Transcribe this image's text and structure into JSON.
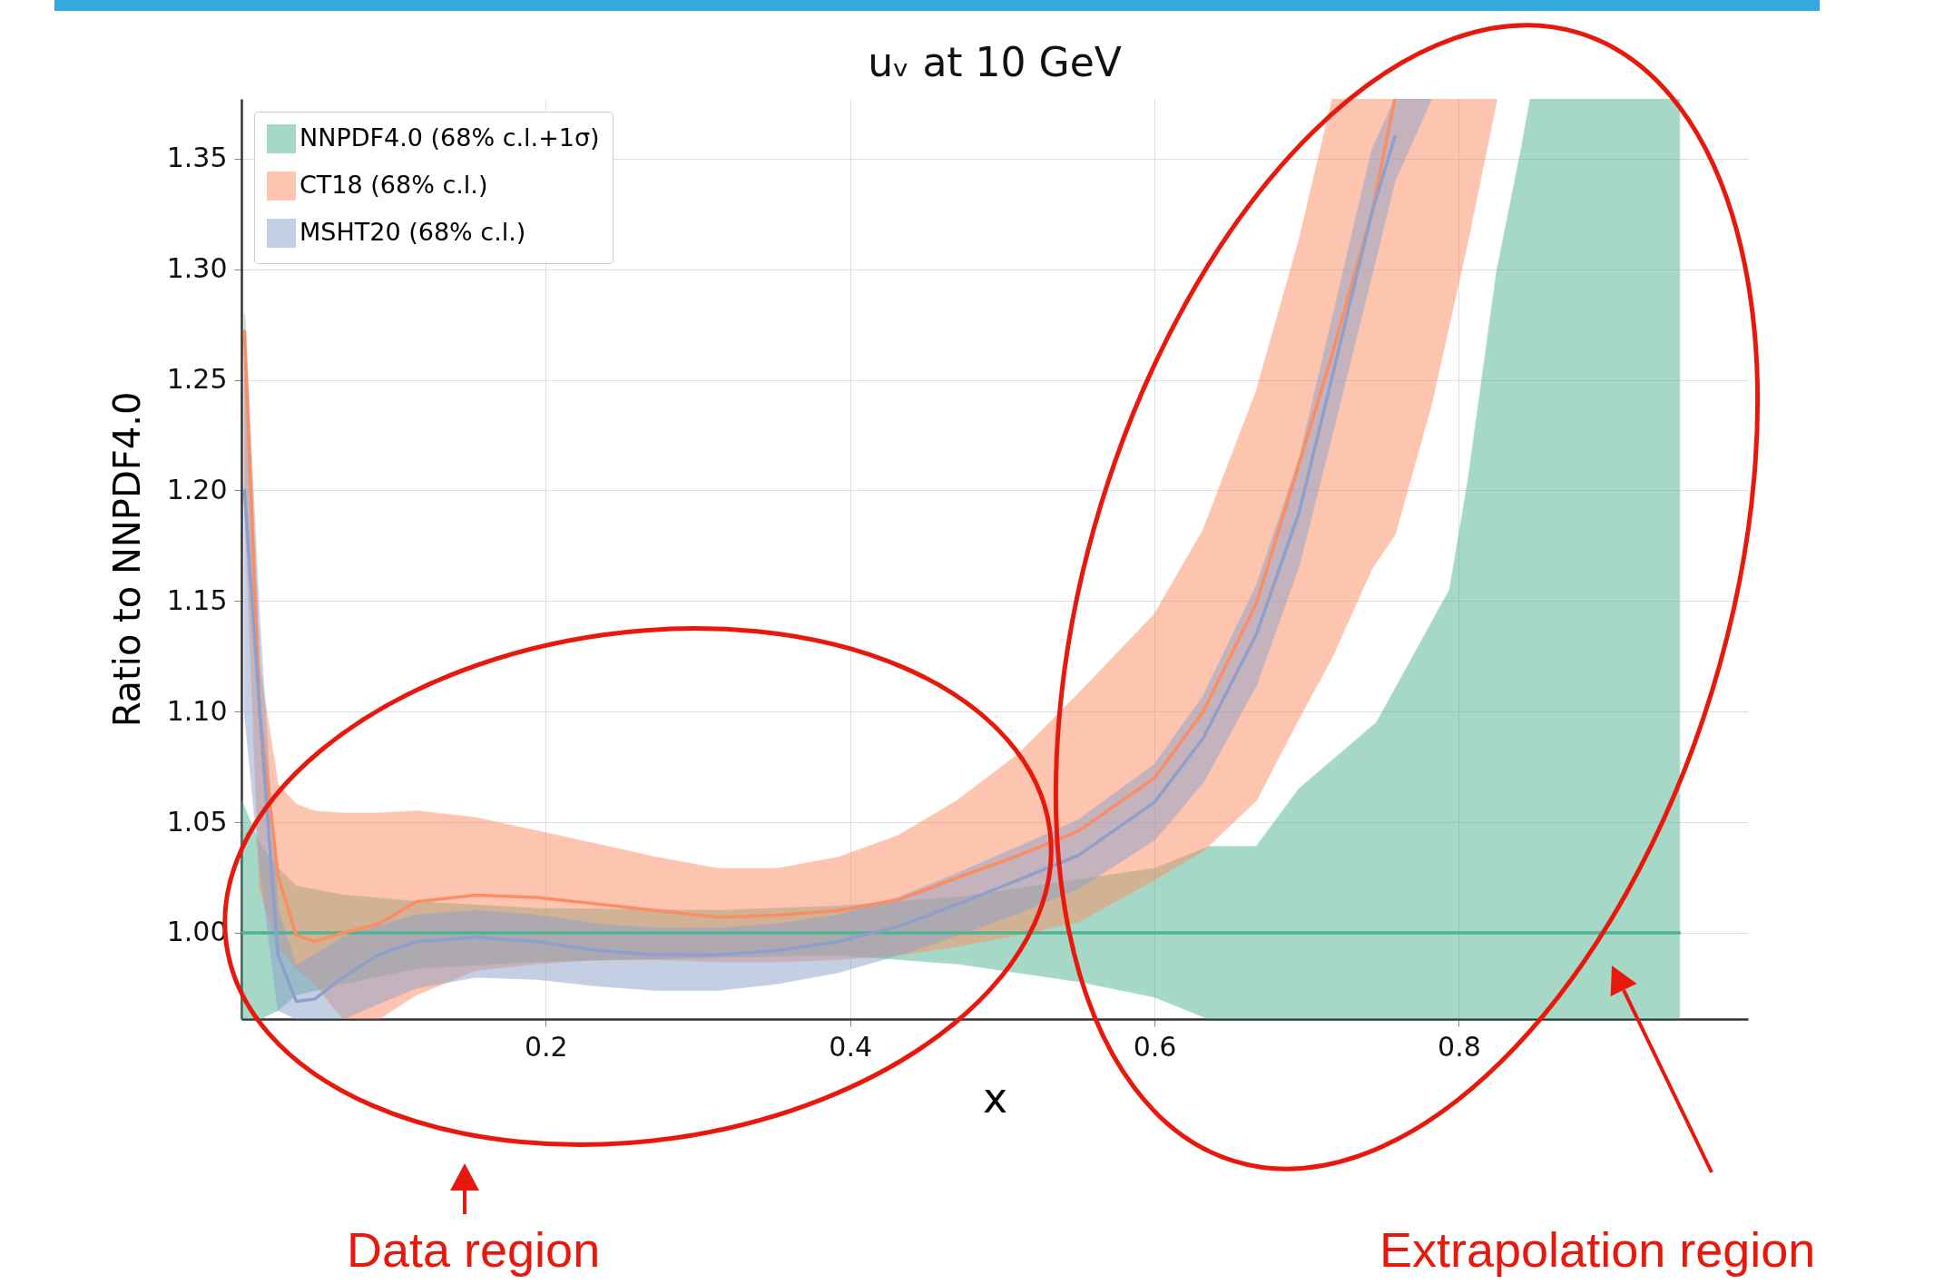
{
  "chart_data": {
    "type": "line",
    "title": "uᵥ at 10 GeV",
    "xlabel": "x",
    "ylabel": "Ratio to NNPDF4.0",
    "xlim": [
      0,
      0.99
    ],
    "ylim": [
      0.961,
      1.377
    ],
    "xticks": [
      0.2,
      0.4,
      0.6,
      0.8
    ],
    "yticks": [
      {
        "value": 1.0,
        "label": "1.00"
      },
      {
        "value": 1.05,
        "label": "1.05"
      },
      {
        "value": 1.1,
        "label": "1.10"
      },
      {
        "value": 1.15,
        "label": "1.15"
      },
      {
        "value": 1.2,
        "label": "1.20"
      },
      {
        "value": 1.25,
        "label": "1.25"
      },
      {
        "value": 1.3,
        "label": "1.30"
      },
      {
        "value": 1.35,
        "label": "1.35"
      }
    ],
    "grid": true,
    "legend": "top left",
    "series": [
      {
        "name": "NNPDF4.0 (68% c.l.+1σ)",
        "color": "#4fb392",
        "x": [
          0,
          0.012,
          0.024,
          0.036,
          0.067,
          0.115,
          0.194,
          0.313,
          0.392,
          0.471,
          0.55,
          0.6,
          0.636,
          0.667,
          0.695,
          0.746,
          0.794,
          0.806,
          0.825,
          0.841,
          0.847,
          0.945
        ],
        "values": [
          1,
          1,
          1,
          1,
          1,
          1,
          1,
          1,
          1,
          1,
          1,
          1,
          1,
          1,
          1,
          1,
          1,
          1,
          1,
          1,
          1,
          1
        ],
        "upper": [
          1.06,
          1.04,
          1.029,
          1.021,
          1.017,
          1.014,
          1.011,
          1.01,
          1.012,
          1.016,
          1.024,
          1.029,
          1.039,
          1.039,
          1.065,
          1.095,
          1.155,
          1.204,
          1.299,
          1.354,
          1.377,
          1.377
        ],
        "lower": [
          0.961,
          0.961,
          0.965,
          0.972,
          0.977,
          0.984,
          0.987,
          0.989,
          0.99,
          0.986,
          0.978,
          0.971,
          0.961,
          0.961,
          0.961,
          0.961,
          0.961,
          0.961,
          0.961,
          0.961,
          0.961,
          0.961
        ]
      },
      {
        "name": "CT18 (68% c.l.)",
        "color": "#fc8d62",
        "x": [
          0.002,
          0.012,
          0.024,
          0.036,
          0.048,
          0.067,
          0.09,
          0.115,
          0.154,
          0.194,
          0.234,
          0.273,
          0.313,
          0.352,
          0.392,
          0.432,
          0.471,
          0.511,
          0.55,
          0.6,
          0.632,
          0.667,
          0.695,
          0.717,
          0.743,
          0.758,
          0.782,
          0.806,
          0.825
        ],
        "values": [
          1.272,
          1.1,
          1.026,
          0.999,
          0.996,
          1.0,
          1.004,
          1.014,
          1.017,
          1.016,
          1.013,
          1.01,
          1.007,
          1.008,
          1.01,
          1.015,
          1.025,
          1.035,
          1.046,
          1.07,
          1.1,
          1.149,
          1.212,
          1.262,
          1.326,
          1.377,
          null,
          null,
          null
        ],
        "upper": [
          1.272,
          1.12,
          1.067,
          1.058,
          1.055,
          1.054,
          1.054,
          1.055,
          1.052,
          1.046,
          1.04,
          1.034,
          1.029,
          1.029,
          1.034,
          1.044,
          1.06,
          1.081,
          1.108,
          1.144,
          1.182,
          1.245,
          1.313,
          1.377,
          1.377,
          1.377,
          1.377,
          1.377,
          1.377
        ],
        "lower": [
          1.2,
          1.02,
          0.994,
          0.984,
          0.977,
          0.961,
          0.961,
          0.972,
          0.983,
          0.986,
          0.988,
          0.988,
          0.987,
          0.987,
          0.988,
          0.99,
          0.994,
          0.999,
          1.005,
          1.024,
          1.037,
          1.06,
          1.097,
          1.125,
          1.165,
          1.18,
          1.239,
          1.313,
          1.377
        ]
      },
      {
        "name": "MSHT20 (68% c.l.)",
        "color": "#8da0cb",
        "x": [
          0.002,
          0.012,
          0.024,
          0.036,
          0.048,
          0.067,
          0.09,
          0.115,
          0.154,
          0.194,
          0.234,
          0.273,
          0.313,
          0.352,
          0.392,
          0.432,
          0.471,
          0.511,
          0.55,
          0.6,
          0.632,
          0.667,
          0.695,
          0.717,
          0.743,
          0.758,
          0.782
        ],
        "values": [
          1.2,
          1.1,
          0.99,
          0.969,
          0.97,
          0.98,
          0.99,
          0.996,
          0.998,
          0.996,
          0.992,
          0.99,
          0.99,
          0.992,
          0.996,
          1.003,
          1.013,
          1.024,
          1.035,
          1.059,
          1.088,
          1.135,
          1.19,
          1.252,
          1.326,
          1.36,
          null
        ],
        "upper": [
          1.28,
          1.14,
          1.01,
          0.985,
          0.99,
          0.998,
          1.003,
          1.008,
          1.01,
          1.008,
          1.004,
          1.002,
          1.002,
          1.004,
          1.008,
          1.016,
          1.027,
          1.039,
          1.051,
          1.076,
          1.107,
          1.157,
          1.214,
          1.278,
          1.354,
          1.377,
          1.377
        ],
        "lower": [
          1.1,
          1.03,
          0.965,
          0.961,
          0.961,
          0.961,
          0.968,
          0.975,
          0.98,
          0.979,
          0.976,
          0.974,
          0.974,
          0.977,
          0.982,
          0.99,
          0.999,
          1.009,
          1.02,
          1.042,
          1.068,
          1.112,
          1.166,
          1.226,
          1.298,
          1.34,
          1.377
        ]
      }
    ],
    "annotations": [
      "Data region",
      "Extrapolation region"
    ]
  }
}
